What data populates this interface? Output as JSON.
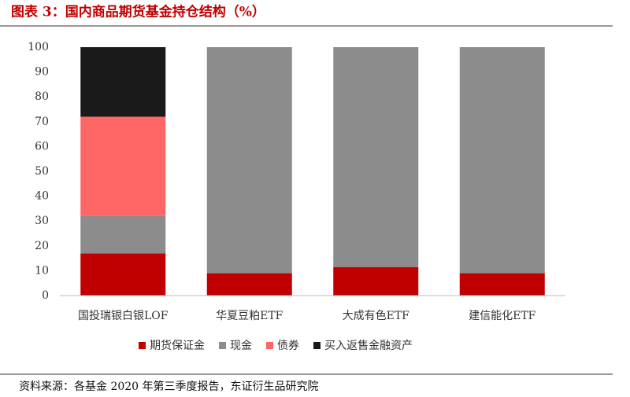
{
  "chart_data": {
    "type": "stacked-bar",
    "title": "图表 3：国内商品期货基金持仓结构（%）",
    "source": "资料来源：各基金 2020 年第三季度报告，东证衍生品研究院",
    "categories": [
      "国投瑞银白银LOF",
      "华夏豆粕ETF",
      "大成有色ETF",
      "建信能化ETF"
    ],
    "series": [
      {
        "name": "期货保证金",
        "color": "#c00000",
        "values": [
          17,
          9,
          11.5,
          9
        ]
      },
      {
        "name": "现金",
        "color": "#8c8c8c",
        "values": [
          15,
          91,
          88.5,
          91
        ]
      },
      {
        "name": "债券",
        "color": "#ff6666",
        "values": [
          40,
          0,
          0,
          0
        ]
      },
      {
        "name": "买入返售金融资产",
        "color": "#1a1a1a",
        "values": [
          28,
          0,
          0,
          0
        ]
      }
    ],
    "ylim": [
      0,
      100
    ],
    "yticks": [
      0,
      10,
      20,
      30,
      40,
      50,
      60,
      70,
      80,
      90,
      100
    ],
    "grid": false
  }
}
